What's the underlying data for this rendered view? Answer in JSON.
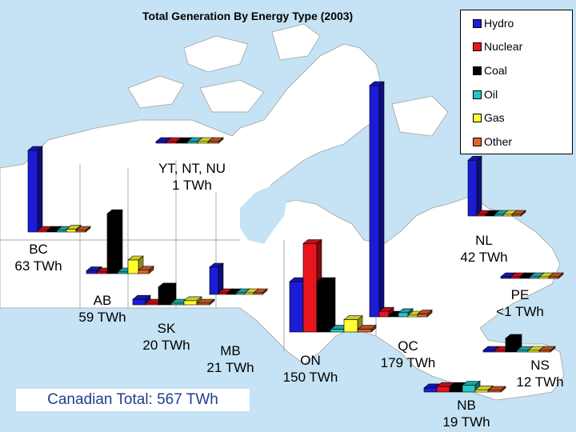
{
  "chart_data": {
    "type": "bar",
    "title": "Total Generation By Energy Type (2003)",
    "unit": "TWh",
    "series_names": [
      "Hydro",
      "Nuclear",
      "Coal",
      "Oil",
      "Gas",
      "Other"
    ],
    "colors": {
      "Hydro": "#1c1cd6",
      "Nuclear": "#e8141e",
      "Coal": "#000000",
      "Oil": "#26c6c6",
      "Gas": "#ffff33",
      "Other": "#e0642a"
    },
    "regions": [
      {
        "id": "bc",
        "label_name": "BC",
        "label_total": "63 TWh",
        "values": {
          "Hydro": 60,
          "Nuclear": 0,
          "Coal": 0,
          "Oil": 0.5,
          "Gas": 2,
          "Other": 1
        }
      },
      {
        "id": "ab",
        "label_name": "AB",
        "label_total": "59 TWh",
        "values": {
          "Hydro": 2,
          "Nuclear": 0,
          "Coal": 44,
          "Oil": 0.5,
          "Gas": 10,
          "Other": 2.5
        }
      },
      {
        "id": "sk",
        "label_name": "SK",
        "label_total": "20 TWh",
        "values": {
          "Hydro": 4,
          "Nuclear": 0,
          "Coal": 13,
          "Oil": 0.2,
          "Gas": 3,
          "Other": 0.3
        }
      },
      {
        "id": "mb",
        "label_name": "MB",
        "label_total": "21 TWh",
        "values": {
          "Hydro": 20,
          "Nuclear": 0,
          "Coal": 0.5,
          "Oil": 0.1,
          "Gas": 0.2,
          "Other": 0.2
        }
      },
      {
        "id": "on",
        "label_name": "ON",
        "label_total": "150 TWh",
        "values": {
          "Hydro": 37,
          "Nuclear": 65,
          "Coal": 37,
          "Oil": 2,
          "Gas": 9,
          "Other": 2
        }
      },
      {
        "id": "qc",
        "label_name": "QC",
        "label_total": "179 TWh",
        "values": {
          "Hydro": 170,
          "Nuclear": 4,
          "Coal": 0,
          "Oil": 3,
          "Gas": 0.5,
          "Other": 2
        }
      },
      {
        "id": "nl",
        "label_name": "NL",
        "label_total": "42 TWh",
        "values": {
          "Hydro": 41,
          "Nuclear": 0,
          "Coal": 0,
          "Oil": 1,
          "Gas": 0,
          "Other": 0.3
        }
      },
      {
        "id": "nb",
        "label_name": "NB",
        "label_total": "19 TWh",
        "values": {
          "Hydro": 3,
          "Nuclear": 4,
          "Coal": 4,
          "Oil": 5,
          "Gas": 1.5,
          "Other": 1
        }
      },
      {
        "id": "ns",
        "label_name": "NS",
        "label_total": "12 TWh",
        "values": {
          "Hydro": 1,
          "Nuclear": 0,
          "Coal": 10,
          "Oil": 1,
          "Gas": 0.5,
          "Other": 0.3
        }
      },
      {
        "id": "pe",
        "label_name": "PE",
        "label_total": "<1 TWh",
        "values": {
          "Hydro": 0,
          "Nuclear": 0,
          "Coal": 0,
          "Oil": 0.1,
          "Gas": 0,
          "Other": 0.05
        }
      },
      {
        "id": "ter",
        "label_name": "YT, NT, NU",
        "label_total": "1 TWh",
        "values": {
          "Hydro": 0.5,
          "Nuclear": 0,
          "Coal": 0,
          "Oil": 0.3,
          "Gas": 0.1,
          "Other": 0
        }
      }
    ],
    "total_text": "Canadian Total: 567 TWh"
  }
}
